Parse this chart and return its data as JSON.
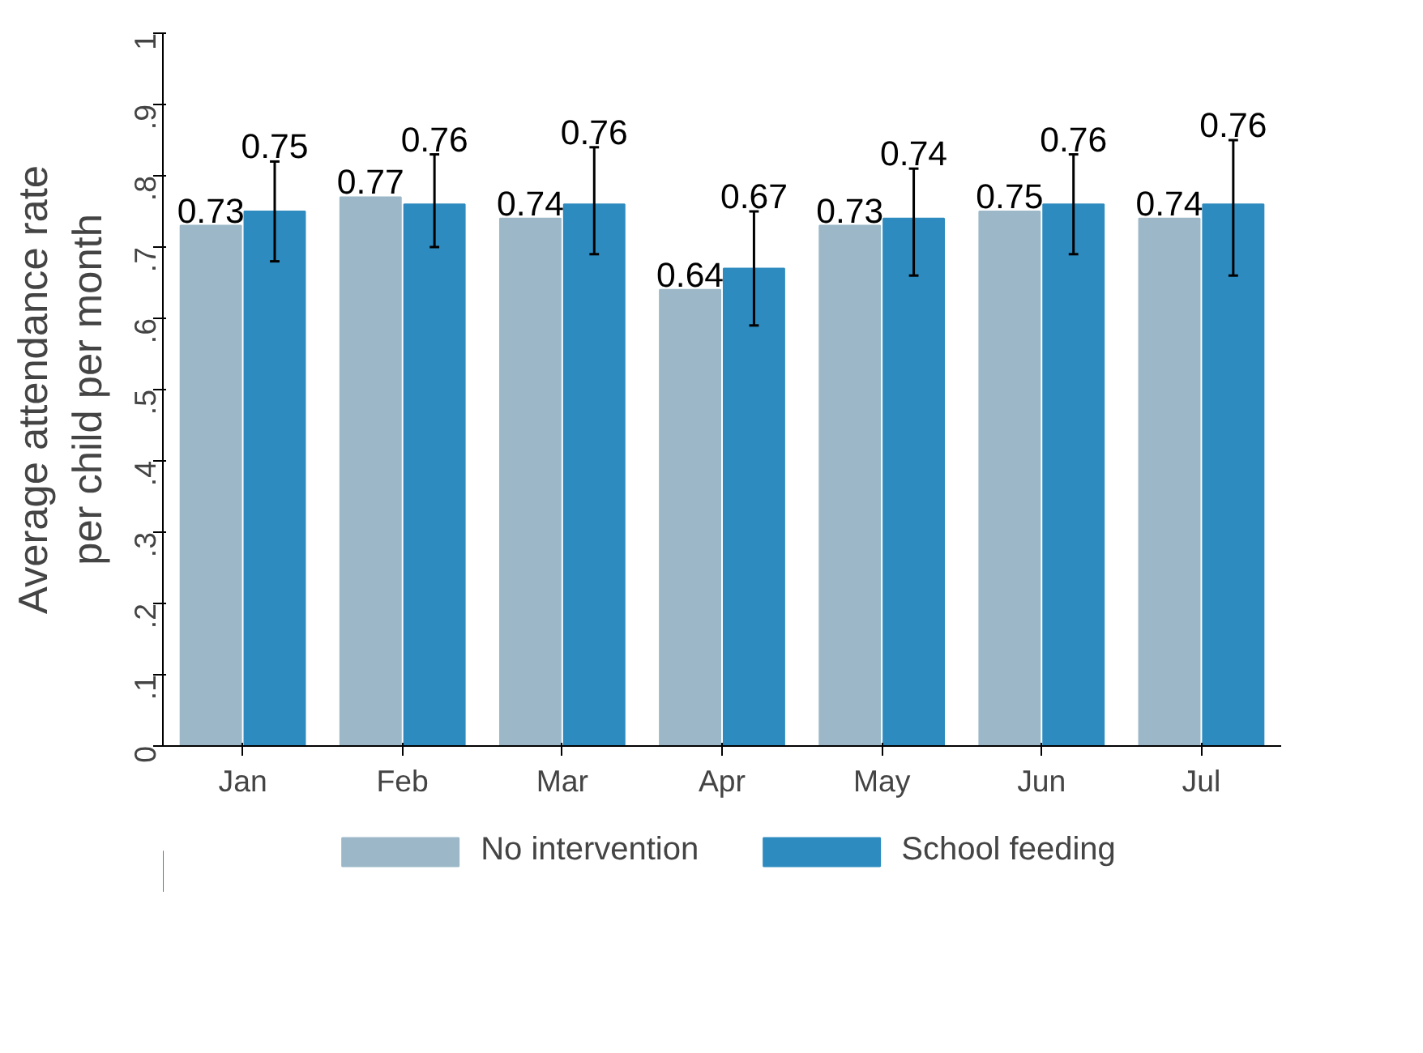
{
  "chart_data": {
    "type": "bar",
    "ylabel": "Average attendance rate\nper child per month",
    "categories": [
      "Jan",
      "Feb",
      "Mar",
      "Apr",
      "May",
      "Jun",
      "Jul"
    ],
    "series": [
      {
        "name": "No intervention",
        "color": "#9cb8c8",
        "values": [
          0.73,
          0.77,
          0.74,
          0.64,
          0.73,
          0.75,
          0.74
        ]
      },
      {
        "name": "School feeding",
        "color": "#2e8bbf",
        "values": [
          0.75,
          0.76,
          0.76,
          0.67,
          0.74,
          0.76,
          0.76
        ],
        "errors": [
          [
            0.68,
            0.82
          ],
          [
            0.7,
            0.83
          ],
          [
            0.69,
            0.84
          ],
          [
            0.59,
            0.75
          ],
          [
            0.66,
            0.81
          ],
          [
            0.69,
            0.83
          ],
          [
            0.66,
            0.85
          ]
        ]
      }
    ],
    "ylim": [
      0,
      1
    ],
    "yticks": [
      {
        "value": 0,
        "label": "0"
      },
      {
        "value": 0.1,
        "label": ".1"
      },
      {
        "value": 0.2,
        "label": ".2"
      },
      {
        "value": 0.3,
        "label": ".3"
      },
      {
        "value": 0.4,
        "label": ".4"
      },
      {
        "value": 0.5,
        "label": ".5"
      },
      {
        "value": 0.6,
        "label": ".6"
      },
      {
        "value": 0.7,
        "label": ".7"
      },
      {
        "value": 0.8,
        "label": ".8"
      },
      {
        "value": 0.9,
        "label": ".9"
      },
      {
        "value": 1,
        "label": "1"
      }
    ],
    "data_labels": true,
    "legend": "bottom",
    "grid": false
  }
}
